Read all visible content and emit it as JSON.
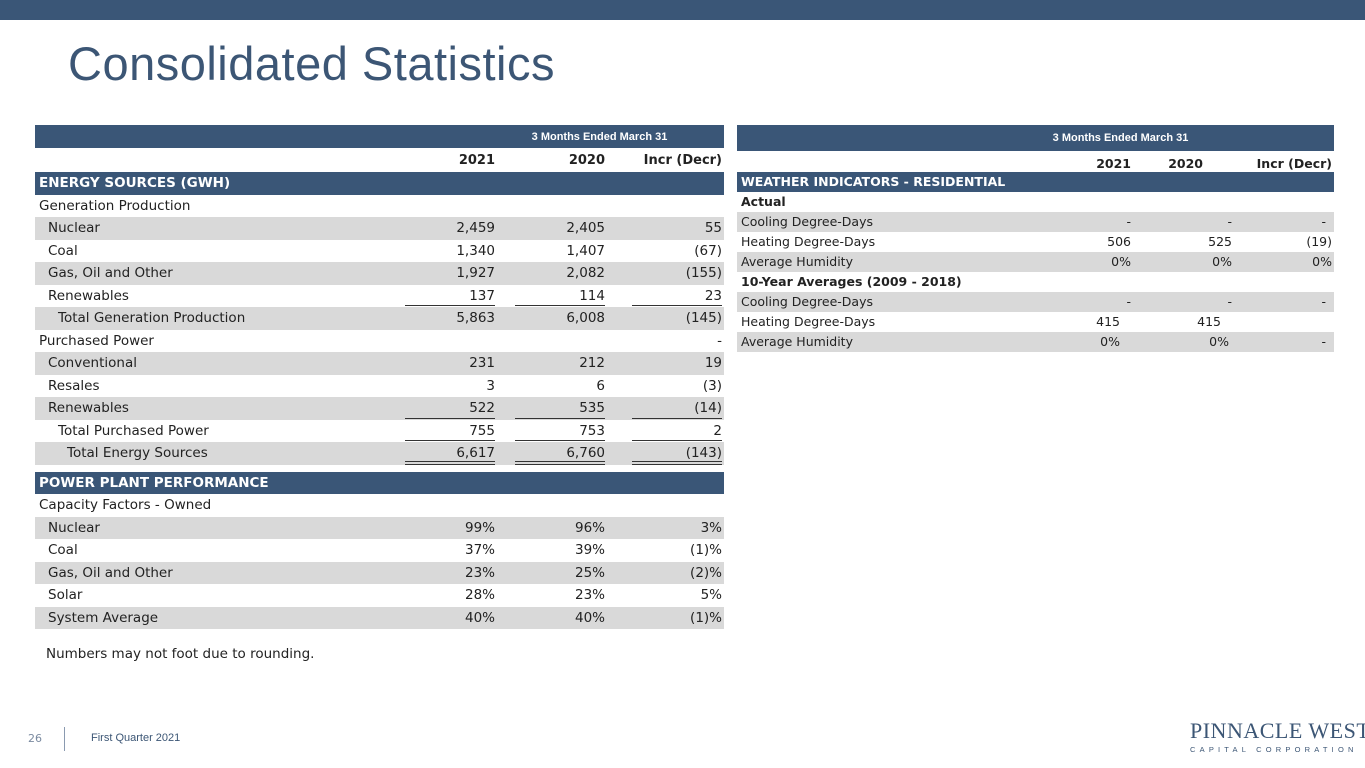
{
  "title": "Consolidated Statistics",
  "colors": {
    "accent": "#3a5677",
    "alt_row": "#d9d9d9",
    "title": "#3c5675"
  },
  "left_table": {
    "period": "3 Months Ended March 31",
    "columns": [
      "2021",
      "2020",
      "Incr (Decr)"
    ],
    "section1": "ENERGY SOURCES (GWH)",
    "gen_header": "Generation Production",
    "gen_rows": [
      {
        "label": "Nuclear",
        "v2021": "2,459",
        "v2020": "2,405",
        "incr": "55"
      },
      {
        "label": "Coal",
        "v2021": "1,340",
        "v2020": "1,407",
        "incr": "(67)"
      },
      {
        "label": "Gas, Oil and Other",
        "v2021": "1,927",
        "v2020": "2,082",
        "incr": "(155)"
      },
      {
        "label": "Renewables",
        "v2021": "137",
        "v2020": "114",
        "incr": "23"
      }
    ],
    "gen_total": {
      "label": "Total Generation Production",
      "v2021": "5,863",
      "v2020": "6,008",
      "incr": "(145)"
    },
    "purchased_header": {
      "label": "Purchased Power",
      "incr": "-"
    },
    "purchased_rows": [
      {
        "label": "Conventional",
        "v2021": "231",
        "v2020": "212",
        "incr": "19"
      },
      {
        "label": "Resales",
        "v2021": "3",
        "v2020": "6",
        "incr": "(3)"
      },
      {
        "label": "Renewables",
        "v2021": "522",
        "v2020": "535",
        "incr": "(14)"
      }
    ],
    "purchased_total": {
      "label": "Total Purchased Power",
      "v2021": "755",
      "v2020": "753",
      "incr": "2"
    },
    "energy_total": {
      "label": "Total Energy Sources",
      "v2021": "6,617",
      "v2020": "6,760",
      "incr": "(143)"
    },
    "section2": "POWER PLANT PERFORMANCE",
    "cap_header": "Capacity Factors - Owned",
    "cap_rows": [
      {
        "label": "Nuclear",
        "v2021": "99%",
        "v2020": "96%",
        "incr": "3%"
      },
      {
        "label": "Coal",
        "v2021": "37%",
        "v2020": "39%",
        "incr": "(1)%"
      },
      {
        "label": "Gas, Oil and Other",
        "v2021": "23%",
        "v2020": "25%",
        "incr": "(2)%"
      },
      {
        "label": "Solar",
        "v2021": "28%",
        "v2020": "23%",
        "incr": "5%"
      },
      {
        "label": "System Average",
        "v2021": "40%",
        "v2020": "40%",
        "incr": "(1)%"
      }
    ]
  },
  "note": "Numbers  may  not foot due  to rounding.",
  "right_table": {
    "period": "3 Months Ended March 31",
    "columns": [
      "2021",
      "2020",
      "Incr (Decr)"
    ],
    "section": "WEATHER INDICATORS - RESIDENTIAL",
    "actual_header": "Actual",
    "actual_rows": [
      {
        "label": "Cooling Degree-Days",
        "v2021": "-",
        "v2020": "-",
        "incr": "-"
      },
      {
        "label": "Heating Degree-Days",
        "v2021": "506",
        "v2020": "525",
        "incr": "(19)"
      },
      {
        "label": "Average Humidity",
        "v2021": "0%",
        "v2020": "0%",
        "incr": "0%"
      }
    ],
    "avg_header": "10-Year Averages (2009 - 2018)",
    "avg_rows": [
      {
        "label": "Cooling Degree-Days",
        "v2021": "-",
        "v2020": "-",
        "incr": "-"
      },
      {
        "label": "Heating Degree-Days",
        "v2021": "415",
        "v2020": "415",
        "incr": ""
      },
      {
        "label": "Average Humidity",
        "v2021": "0%",
        "v2020": "0%",
        "incr": "-"
      }
    ]
  },
  "footer": {
    "page_number": "26",
    "text": "First Quarter 2021",
    "logo_line1": "PINNACLE WEST",
    "logo_line2": "CAPITAL CORPORATION"
  }
}
